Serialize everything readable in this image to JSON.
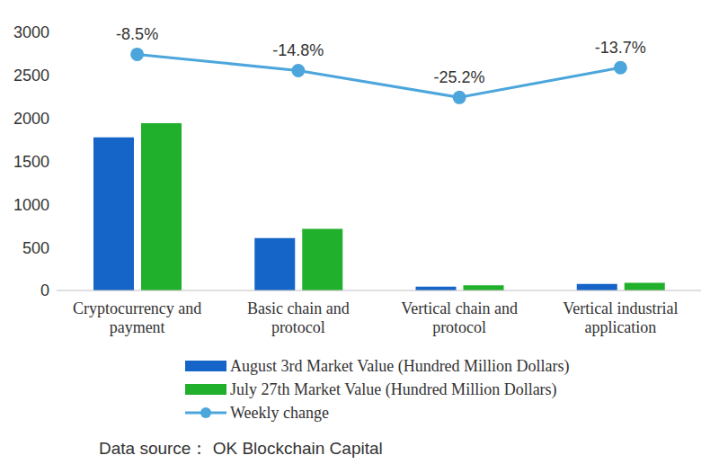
{
  "chart_data": {
    "type": "bar",
    "categories": [
      "Cryptocurrency and payment",
      "Basic chain and protocol",
      "Vertical chain and protocol",
      "Vertical industrial application"
    ],
    "series": [
      {
        "name": "August 3rd Market Value (Hundred Million Dollars)",
        "color": "#1565c8",
        "type": "bar",
        "values": [
          1780,
          610,
          45,
          75
        ]
      },
      {
        "name": "July 27th Market Value (Hundred Million Dollars)",
        "color": "#21b02c",
        "type": "bar",
        "values": [
          1945,
          715,
          60,
          90
        ]
      },
      {
        "name": "Weekly change",
        "color": "#4ca6dc",
        "type": "line",
        "marker": "circle",
        "axis": "y2",
        "data_labels": true,
        "values": [
          -8.5,
          -14.8,
          -25.2,
          -13.7
        ],
        "value_labels": [
          "-8.5%",
          "-14.8%",
          "-25.2%",
          "-13.7%"
        ]
      }
    ],
    "ylim": [
      0,
      3000
    ],
    "yticks": [
      0,
      500,
      1000,
      1500,
      2000,
      2500,
      3000
    ],
    "y2lim": [
      -100,
      0
    ],
    "grid": false,
    "legend": "bottom",
    "source": "Data source： OK Blockchain Capital"
  }
}
